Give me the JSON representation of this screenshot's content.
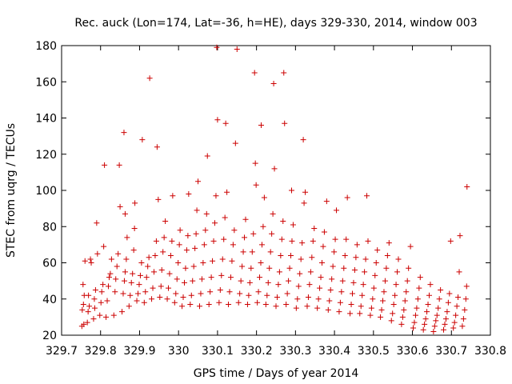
{
  "chart_data": {
    "type": "scatter",
    "title": "Rec. auck (Lon=174, Lat=-36, h=HE), days 329-330, 2014, window 003",
    "xlabel": "GPS time / Days of year 2014",
    "ylabel": "STEC from uqrg / TECUs",
    "xlim": [
      329.7,
      330.8
    ],
    "ylim": [
      20,
      180
    ],
    "xticks": [
      "329.7",
      "329.8",
      "329.9",
      "330",
      "330.1",
      "330.2",
      "330.3",
      "330.4",
      "330.5",
      "330.6",
      "330.7",
      "330.8"
    ],
    "yticks": [
      "20",
      "40",
      "60",
      "80",
      "100",
      "120",
      "140",
      "160",
      "180"
    ],
    "grid": false,
    "legend": "none",
    "marker": "+",
    "color": "#cc0000",
    "series": [
      {
        "points": [
          [
            329.752,
            25
          ],
          [
            329.757,
            26
          ],
          [
            329.753,
            34
          ],
          [
            329.756,
            37
          ],
          [
            329.758,
            42
          ],
          [
            329.755,
            48
          ],
          [
            329.76,
            61
          ],
          [
            329.766,
            27
          ],
          [
            329.768,
            33
          ],
          [
            329.771,
            36
          ],
          [
            329.769,
            42
          ],
          [
            329.774,
            62
          ],
          [
            329.776,
            60
          ],
          [
            329.782,
            29
          ],
          [
            329.785,
            35
          ],
          [
            329.784,
            40
          ],
          [
            329.787,
            45
          ],
          [
            329.79,
            82
          ],
          [
            329.792,
            65
          ],
          [
            329.798,
            31
          ],
          [
            329.801,
            38
          ],
          [
            329.803,
            44
          ],
          [
            329.806,
            48
          ],
          [
            329.808,
            69
          ],
          [
            329.81,
            114
          ],
          [
            329.814,
            30
          ],
          [
            329.817,
            39
          ],
          [
            329.82,
            47
          ],
          [
            329.822,
            52
          ],
          [
            329.825,
            54
          ],
          [
            329.828,
            62
          ],
          [
            329.834,
            31
          ],
          [
            329.837,
            44
          ],
          [
            329.839,
            51
          ],
          [
            329.842,
            58
          ],
          [
            329.845,
            65
          ],
          [
            329.848,
            114
          ],
          [
            329.85,
            91
          ],
          [
            329.855,
            33
          ],
          [
            329.858,
            43
          ],
          [
            329.861,
            50
          ],
          [
            329.863,
            55
          ],
          [
            329.866,
            62
          ],
          [
            329.868,
            74
          ],
          [
            329.86,
            132
          ],
          [
            329.863,
            87
          ],
          [
            329.873,
            36
          ],
          [
            329.876,
            42
          ],
          [
            329.879,
            49
          ],
          [
            329.882,
            54
          ],
          [
            329.885,
            67
          ],
          [
            329.887,
            79
          ],
          [
            329.888,
            93
          ],
          [
            329.893,
            39
          ],
          [
            329.896,
            43
          ],
          [
            329.899,
            48
          ],
          [
            329.902,
            53
          ],
          [
            329.905,
            60
          ],
          [
            329.907,
            128
          ],
          [
            329.912,
            38
          ],
          [
            329.915,
            44
          ],
          [
            329.918,
            52
          ],
          [
            329.921,
            58
          ],
          [
            329.924,
            63
          ],
          [
            329.926,
            162
          ],
          [
            329.931,
            40
          ],
          [
            329.934,
            46
          ],
          [
            329.937,
            55
          ],
          [
            329.94,
            64
          ],
          [
            329.943,
            72
          ],
          [
            329.945,
            124
          ],
          [
            329.948,
            95
          ],
          [
            329.952,
            41
          ],
          [
            329.955,
            47
          ],
          [
            329.957,
            56
          ],
          [
            329.96,
            66
          ],
          [
            329.963,
            74
          ],
          [
            329.966,
            83
          ],
          [
            329.971,
            40
          ],
          [
            329.974,
            46
          ],
          [
            329.977,
            54
          ],
          [
            329.98,
            64
          ],
          [
            329.983,
            72
          ],
          [
            329.985,
            97
          ],
          [
            329.99,
            38
          ],
          [
            329.993,
            43
          ],
          [
            329.996,
            51
          ],
          [
            329.999,
            60
          ],
          [
            330.002,
            70
          ],
          [
            330.004,
            78
          ],
          [
            330.009,
            36
          ],
          [
            330.012,
            41
          ],
          [
            330.015,
            49
          ],
          [
            330.018,
            57
          ],
          [
            330.021,
            67
          ],
          [
            330.024,
            75
          ],
          [
            330.026,
            98
          ],
          [
            330.03,
            37
          ],
          [
            330.033,
            42
          ],
          [
            330.036,
            50
          ],
          [
            330.039,
            58
          ],
          [
            330.042,
            68
          ],
          [
            330.045,
            76
          ],
          [
            330.047,
            89
          ],
          [
            330.05,
            105
          ],
          [
            330.054,
            36
          ],
          [
            330.057,
            43
          ],
          [
            330.06,
            51
          ],
          [
            330.063,
            60
          ],
          [
            330.066,
            70
          ],
          [
            330.069,
            78
          ],
          [
            330.072,
            87
          ],
          [
            330.074,
            119
          ],
          [
            330.078,
            37
          ],
          [
            330.081,
            44
          ],
          [
            330.084,
            52
          ],
          [
            330.087,
            61
          ],
          [
            330.09,
            72
          ],
          [
            330.093,
            82
          ],
          [
            330.096,
            97
          ],
          [
            330.098,
            179
          ],
          [
            330.1,
            139
          ],
          [
            330.104,
            38
          ],
          [
            330.107,
            45
          ],
          [
            330.11,
            53
          ],
          [
            330.113,
            62
          ],
          [
            330.116,
            73
          ],
          [
            330.119,
            85
          ],
          [
            330.121,
            137
          ],
          [
            330.124,
            99
          ],
          [
            330.128,
            37
          ],
          [
            330.131,
            44
          ],
          [
            330.134,
            52
          ],
          [
            330.137,
            61
          ],
          [
            330.14,
            70
          ],
          [
            330.143,
            78
          ],
          [
            330.146,
            126
          ],
          [
            330.15,
            178
          ],
          [
            330.154,
            38
          ],
          [
            330.157,
            43
          ],
          [
            330.16,
            50
          ],
          [
            330.163,
            58
          ],
          [
            330.166,
            66
          ],
          [
            330.169,
            74
          ],
          [
            330.172,
            84
          ],
          [
            330.177,
            37
          ],
          [
            330.18,
            42
          ],
          [
            330.183,
            49
          ],
          [
            330.186,
            57
          ],
          [
            330.189,
            66
          ],
          [
            330.192,
            76
          ],
          [
            330.195,
            165
          ],
          [
            330.197,
            115
          ],
          [
            330.199,
            103
          ],
          [
            330.202,
            38
          ],
          [
            330.205,
            44
          ],
          [
            330.208,
            52
          ],
          [
            330.211,
            60
          ],
          [
            330.214,
            70
          ],
          [
            330.217,
            80
          ],
          [
            330.212,
            136
          ],
          [
            330.22,
            96
          ],
          [
            330.224,
            37
          ],
          [
            330.227,
            42
          ],
          [
            330.23,
            49
          ],
          [
            330.233,
            57
          ],
          [
            330.236,
            66
          ],
          [
            330.239,
            76
          ],
          [
            330.242,
            87
          ],
          [
            330.244,
            159
          ],
          [
            330.246,
            112
          ],
          [
            330.25,
            36
          ],
          [
            330.253,
            41
          ],
          [
            330.256,
            48
          ],
          [
            330.259,
            55
          ],
          [
            330.262,
            64
          ],
          [
            330.265,
            73
          ],
          [
            330.268,
            83
          ],
          [
            330.27,
            165
          ],
          [
            330.272,
            137
          ],
          [
            330.276,
            37
          ],
          [
            330.279,
            43
          ],
          [
            330.282,
            50
          ],
          [
            330.285,
            57
          ],
          [
            330.288,
            64
          ],
          [
            330.291,
            72
          ],
          [
            330.294,
            81
          ],
          [
            330.29,
            100
          ],
          [
            330.302,
            35
          ],
          [
            330.305,
            40
          ],
          [
            330.308,
            47
          ],
          [
            330.311,
            54
          ],
          [
            330.314,
            62
          ],
          [
            330.317,
            71
          ],
          [
            330.32,
            128
          ],
          [
            330.322,
            93
          ],
          [
            330.325,
            99
          ],
          [
            330.33,
            36
          ],
          [
            330.333,
            41
          ],
          [
            330.336,
            48
          ],
          [
            330.339,
            55
          ],
          [
            330.342,
            63
          ],
          [
            330.345,
            72
          ],
          [
            330.348,
            79
          ],
          [
            330.356,
            35
          ],
          [
            330.359,
            40
          ],
          [
            330.362,
            46
          ],
          [
            330.365,
            52
          ],
          [
            330.368,
            60
          ],
          [
            330.371,
            69
          ],
          [
            330.374,
            77
          ],
          [
            330.38,
            94
          ],
          [
            330.384,
            34
          ],
          [
            330.387,
            39
          ],
          [
            330.39,
            45
          ],
          [
            330.393,
            51
          ],
          [
            330.396,
            58
          ],
          [
            330.399,
            66
          ],
          [
            330.402,
            73
          ],
          [
            330.405,
            89
          ],
          [
            330.412,
            33
          ],
          [
            330.415,
            38
          ],
          [
            330.418,
            44
          ],
          [
            330.421,
            50
          ],
          [
            330.424,
            57
          ],
          [
            330.427,
            64
          ],
          [
            330.43,
            73
          ],
          [
            330.433,
            96
          ],
          [
            330.44,
            32
          ],
          [
            330.443,
            37
          ],
          [
            330.446,
            43
          ],
          [
            330.449,
            49
          ],
          [
            330.452,
            56
          ],
          [
            330.455,
            63
          ],
          [
            330.458,
            70
          ],
          [
            330.465,
            32
          ],
          [
            330.468,
            36
          ],
          [
            330.471,
            42
          ],
          [
            330.474,
            48
          ],
          [
            330.477,
            55
          ],
          [
            330.48,
            62
          ],
          [
            330.483,
            97
          ],
          [
            330.486,
            72
          ],
          [
            330.492,
            31
          ],
          [
            330.495,
            35
          ],
          [
            330.498,
            40
          ],
          [
            330.501,
            46
          ],
          [
            330.504,
            53
          ],
          [
            330.507,
            60
          ],
          [
            330.51,
            67
          ],
          [
            330.518,
            30
          ],
          [
            330.521,
            34
          ],
          [
            330.524,
            39
          ],
          [
            330.527,
            44
          ],
          [
            330.53,
            50
          ],
          [
            330.533,
            57
          ],
          [
            330.536,
            64
          ],
          [
            330.54,
            71
          ],
          [
            330.546,
            28
          ],
          [
            330.549,
            32
          ],
          [
            330.552,
            37
          ],
          [
            330.555,
            42
          ],
          [
            330.558,
            48
          ],
          [
            330.561,
            55
          ],
          [
            330.564,
            62
          ],
          [
            330.572,
            26
          ],
          [
            330.575,
            30
          ],
          [
            330.578,
            34
          ],
          [
            330.581,
            39
          ],
          [
            330.584,
            44
          ],
          [
            330.587,
            50
          ],
          [
            330.59,
            57
          ],
          [
            330.595,
            69
          ],
          [
            330.602,
            24
          ],
          [
            330.605,
            27
          ],
          [
            330.608,
            31
          ],
          [
            330.611,
            35
          ],
          [
            330.614,
            40
          ],
          [
            330.617,
            46
          ],
          [
            330.62,
            52
          ],
          [
            330.628,
            23
          ],
          [
            330.631,
            26
          ],
          [
            330.634,
            29
          ],
          [
            330.637,
            33
          ],
          [
            330.64,
            37
          ],
          [
            330.643,
            42
          ],
          [
            330.646,
            48
          ],
          [
            330.654,
            22
          ],
          [
            330.657,
            25
          ],
          [
            330.66,
            28
          ],
          [
            330.663,
            31
          ],
          [
            330.666,
            35
          ],
          [
            330.669,
            40
          ],
          [
            330.672,
            45
          ],
          [
            330.68,
            23
          ],
          [
            330.683,
            26
          ],
          [
            330.686,
            29
          ],
          [
            330.689,
            33
          ],
          [
            330.692,
            38
          ],
          [
            330.695,
            43
          ],
          [
            330.698,
            72
          ],
          [
            330.705,
            24
          ],
          [
            330.708,
            27
          ],
          [
            330.711,
            31
          ],
          [
            330.714,
            36
          ],
          [
            330.717,
            41
          ],
          [
            330.72,
            55
          ],
          [
            330.722,
            75
          ],
          [
            330.728,
            25
          ],
          [
            330.731,
            29
          ],
          [
            330.734,
            34
          ],
          [
            330.737,
            40
          ],
          [
            330.739,
            47
          ],
          [
            330.74,
            102
          ]
        ]
      }
    ]
  }
}
